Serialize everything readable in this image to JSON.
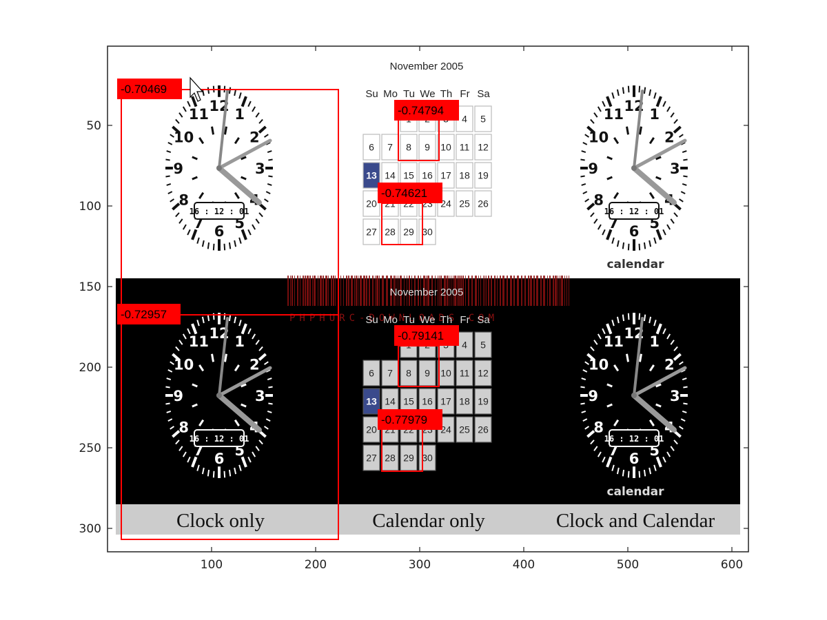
{
  "figure": {
    "y_ticks": [
      "50",
      "100",
      "150",
      "200",
      "250",
      "300"
    ],
    "x_ticks": [
      "100",
      "200",
      "300",
      "400",
      "500",
      "600"
    ],
    "captions": [
      "Clock only",
      "Calendar only",
      "Clock and Calendar"
    ],
    "watermark": "PHPHURC-DOWNLOADS.COM"
  },
  "clock": {
    "numerals": [
      "12",
      "1",
      "2",
      "3",
      "4",
      "5",
      "6",
      "7",
      "8",
      "9",
      "10",
      "11"
    ],
    "digital_time": "16 : 12 : 01",
    "label": "calendar"
  },
  "calendar": {
    "month": "November 2005",
    "weekdays": [
      "Su",
      "Mo",
      "Tu",
      "We",
      "Th",
      "Fr",
      "Sa"
    ],
    "days": [
      "1",
      "2",
      "3",
      "4",
      "5",
      "6",
      "7",
      "8",
      "9",
      "10",
      "11",
      "12",
      "13",
      "14",
      "15",
      "16",
      "17",
      "18",
      "19",
      "20",
      "21",
      "22",
      "23",
      "24",
      "25",
      "26",
      "27",
      "28",
      "29",
      "30"
    ],
    "first_weekday": 2,
    "selected_day": "13",
    "accent_color": "#3a4a8c"
  },
  "detections": {
    "color": "#ff0000",
    "scores": [
      "-0.70469",
      "-0.74794",
      "-0.74621",
      "-0.72957",
      "-0.79141",
      "-0.77979"
    ]
  }
}
